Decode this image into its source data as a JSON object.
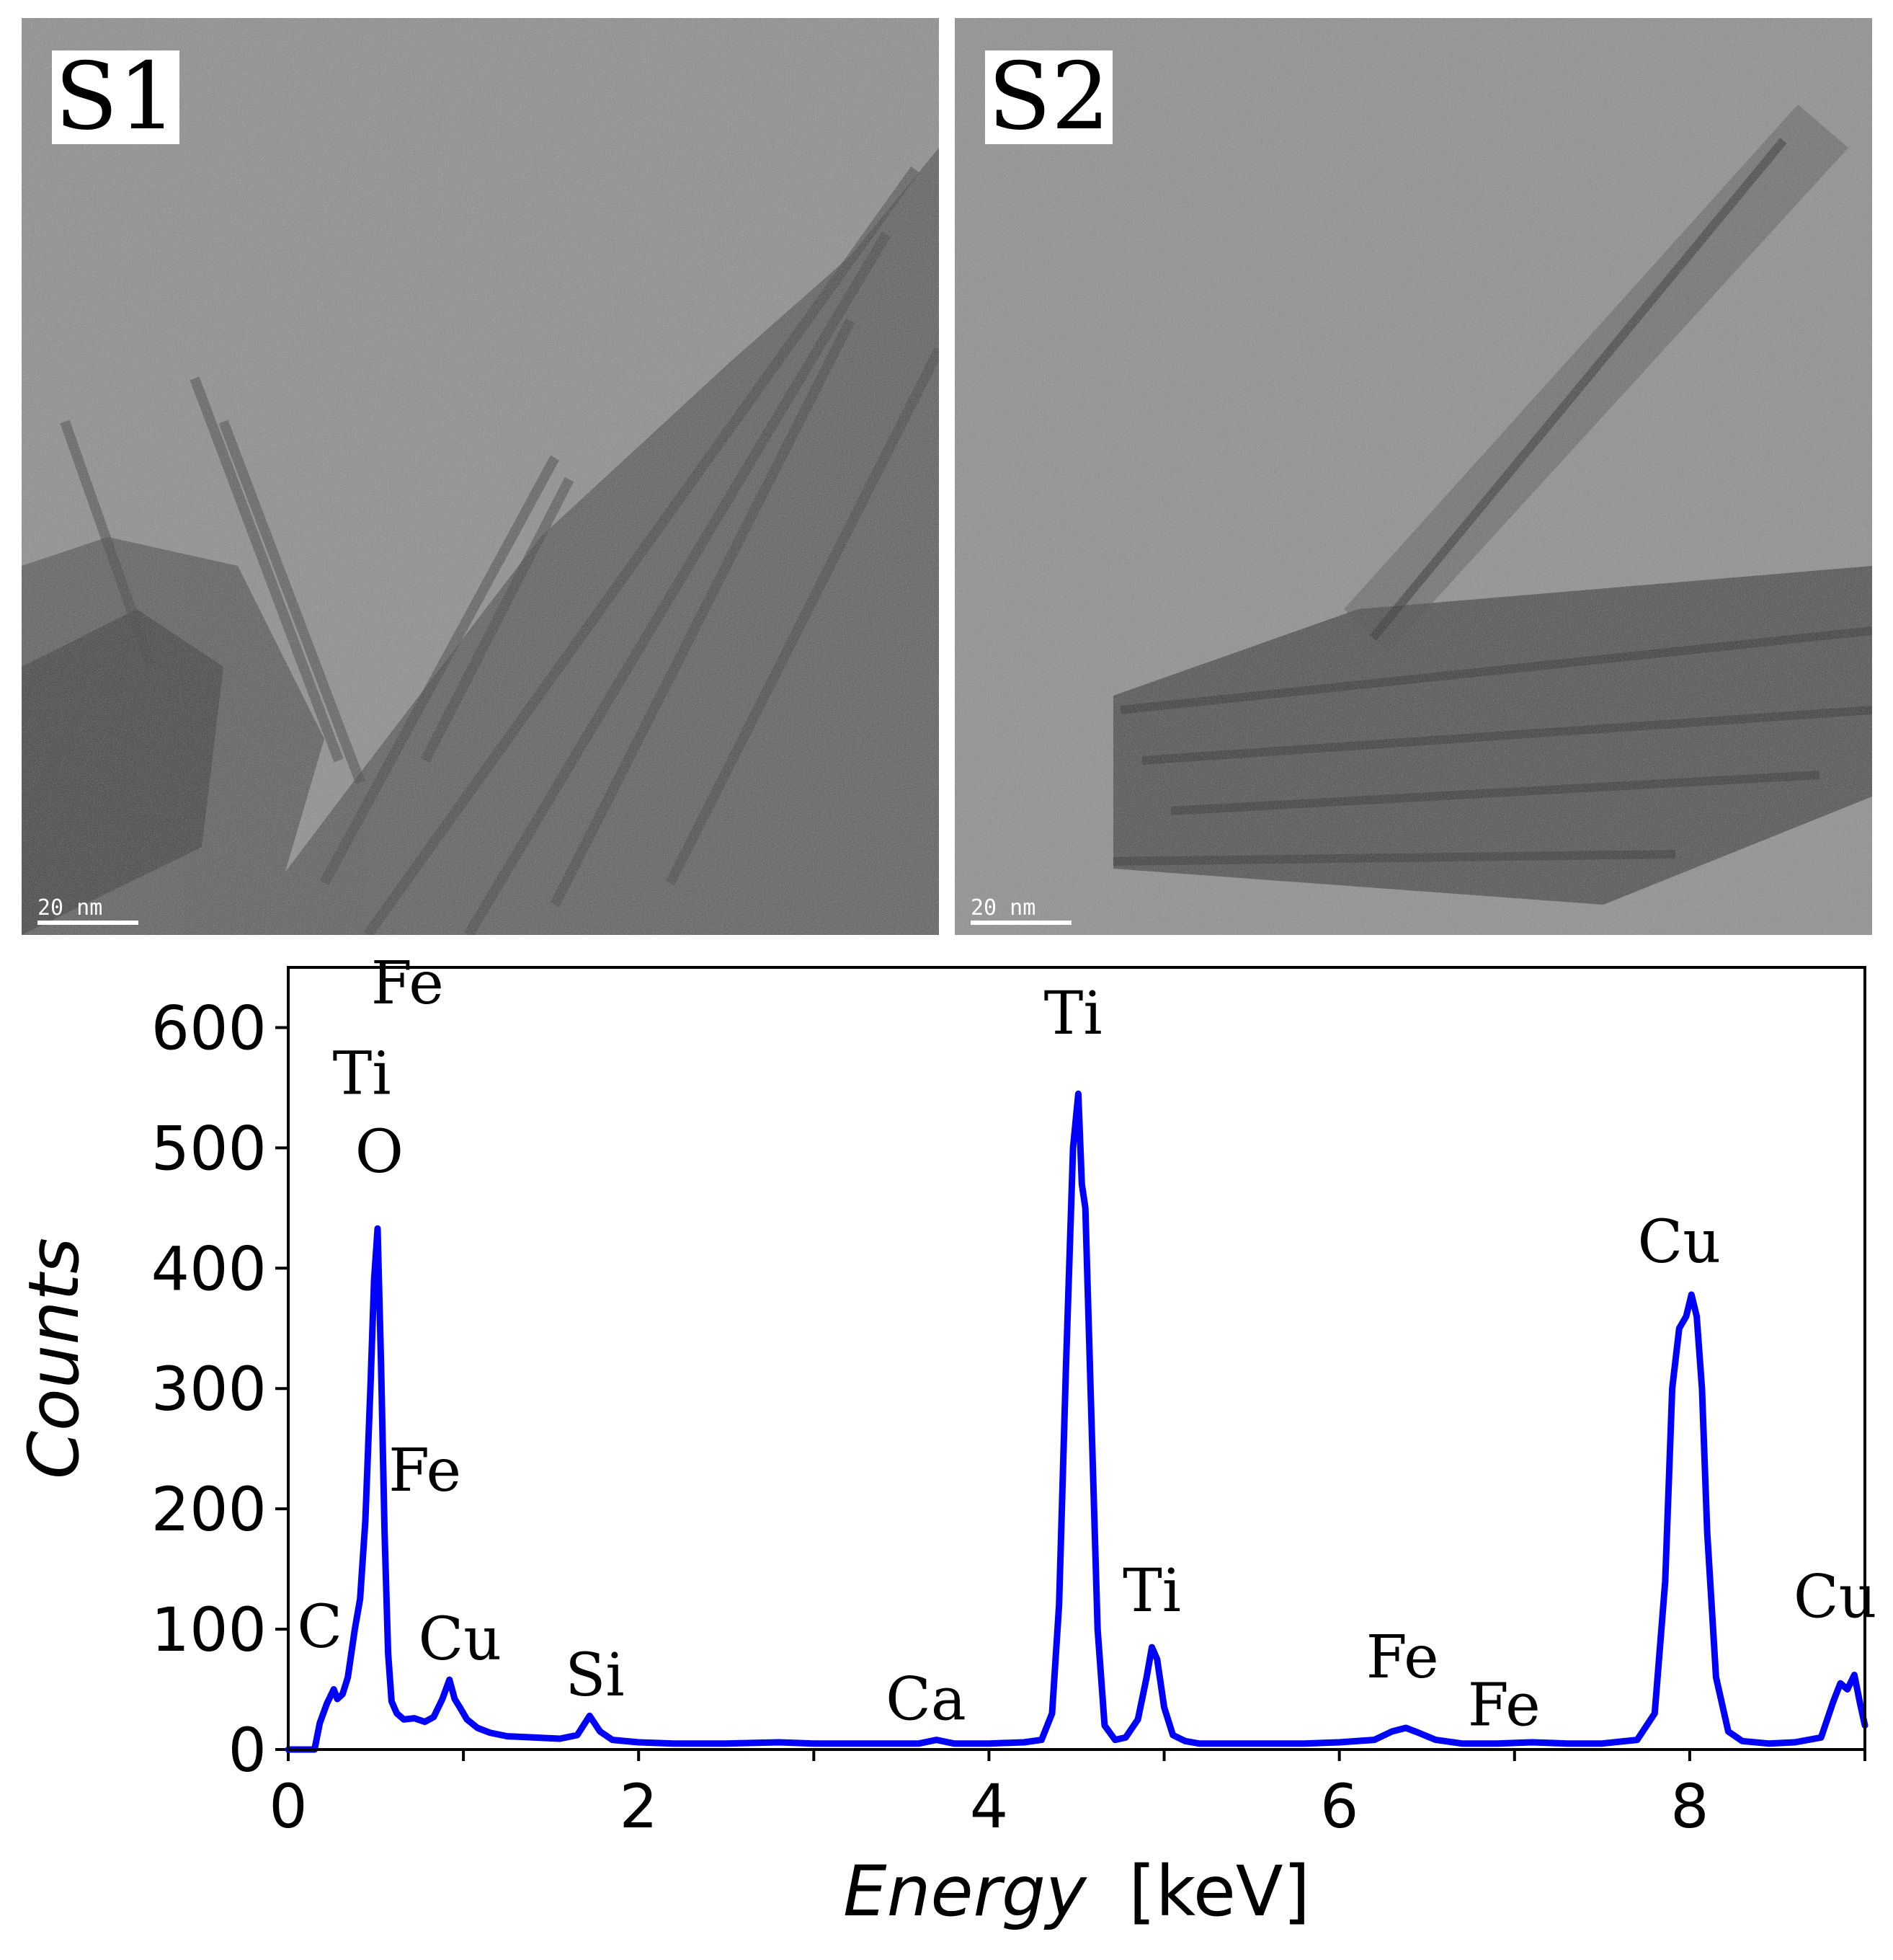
{
  "panels": [
    {
      "label": "S1",
      "scale_bar": "20 nm"
    },
    {
      "label": "S2",
      "scale_bar": "20 nm"
    }
  ],
  "chart_data": {
    "type": "line",
    "title": "",
    "xlabel_italic": "Energy",
    "xlabel_unit": "[keV]",
    "ylabel": "Counts",
    "xlim": [
      0,
      9
    ],
    "ylim": [
      0,
      650
    ],
    "xticks": [
      0,
      2,
      4,
      6,
      8
    ],
    "yticks": [
      0,
      100,
      200,
      300,
      400,
      500,
      600
    ],
    "grid": false,
    "series": [
      {
        "color": "#0000ff",
        "x": [
          0.0,
          0.15,
          0.18,
          0.22,
          0.26,
          0.28,
          0.31,
          0.34,
          0.38,
          0.41,
          0.44,
          0.47,
          0.49,
          0.51,
          0.53,
          0.55,
          0.57,
          0.59,
          0.62,
          0.66,
          0.72,
          0.78,
          0.83,
          0.88,
          0.92,
          0.95,
          0.98,
          1.02,
          1.08,
          1.15,
          1.25,
          1.4,
          1.55,
          1.65,
          1.72,
          1.78,
          1.85,
          2.0,
          2.2,
          2.5,
          2.8,
          3.0,
          3.3,
          3.6,
          3.7,
          3.8,
          4.0,
          4.2,
          4.3,
          4.36,
          4.4,
          4.44,
          4.48,
          4.51,
          4.53,
          4.55,
          4.58,
          4.62,
          4.66,
          4.72,
          4.78,
          4.85,
          4.9,
          4.93,
          4.96,
          5.0,
          5.05,
          5.12,
          5.2,
          5.4,
          5.6,
          5.8,
          6.0,
          6.2,
          6.3,
          6.38,
          6.45,
          6.55,
          6.7,
          6.9,
          7.1,
          7.3,
          7.5,
          7.7,
          7.8,
          7.86,
          7.9,
          7.94,
          7.98,
          8.01,
          8.04,
          8.07,
          8.1,
          8.15,
          8.22,
          8.3,
          8.45,
          8.6,
          8.75,
          8.82,
          8.86,
          8.9,
          8.94,
          8.97,
          9.0
        ],
        "values": [
          0,
          0,
          22,
          38,
          50,
          42,
          46,
          60,
          100,
          125,
          190,
          305,
          390,
          433,
          320,
          180,
          80,
          40,
          30,
          25,
          26,
          23,
          27,
          42,
          58,
          42,
          35,
          25,
          18,
          14,
          11,
          10,
          9,
          12,
          28,
          15,
          8,
          6,
          5,
          5,
          6,
          5,
          5,
          5,
          8,
          5,
          5,
          6,
          8,
          30,
          120,
          320,
          500,
          545,
          470,
          450,
          300,
          100,
          20,
          8,
          10,
          25,
          60,
          85,
          75,
          35,
          12,
          7,
          5,
          5,
          5,
          5,
          6,
          8,
          15,
          18,
          14,
          8,
          5,
          5,
          6,
          5,
          5,
          8,
          30,
          140,
          300,
          350,
          360,
          378,
          360,
          300,
          180,
          60,
          15,
          7,
          5,
          6,
          10,
          40,
          55,
          50,
          62,
          40,
          20
        ]
      }
    ],
    "annotations": [
      {
        "text": "Fe",
        "x": 0.68,
        "y": 620
      },
      {
        "text": "Ti",
        "x": 0.42,
        "y": 545
      },
      {
        "text": "O",
        "x": 0.52,
        "y": 480
      },
      {
        "text": "Fe",
        "x": 0.78,
        "y": 215
      },
      {
        "text": "C",
        "x": 0.18,
        "y": 85
      },
      {
        "text": "Cu",
        "x": 0.98,
        "y": 75
      },
      {
        "text": "Si",
        "x": 1.75,
        "y": 45
      },
      {
        "text": "Ca",
        "x": 3.64,
        "y": 25
      },
      {
        "text": "Ti",
        "x": 4.48,
        "y": 595
      },
      {
        "text": "Ti",
        "x": 4.93,
        "y": 115
      },
      {
        "text": "Fe",
        "x": 6.36,
        "y": 60
      },
      {
        "text": "Fe",
        "x": 6.94,
        "y": 20
      },
      {
        "text": "Cu",
        "x": 7.94,
        "y": 405
      },
      {
        "text": "Cu",
        "x": 8.83,
        "y": 110
      }
    ]
  }
}
